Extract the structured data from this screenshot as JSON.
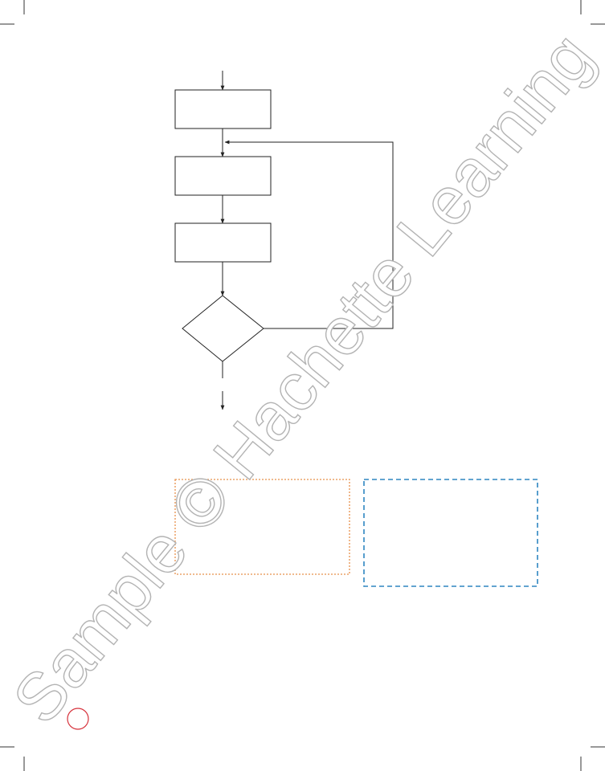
{
  "watermark": "Sample © Hachette Learning"
}
